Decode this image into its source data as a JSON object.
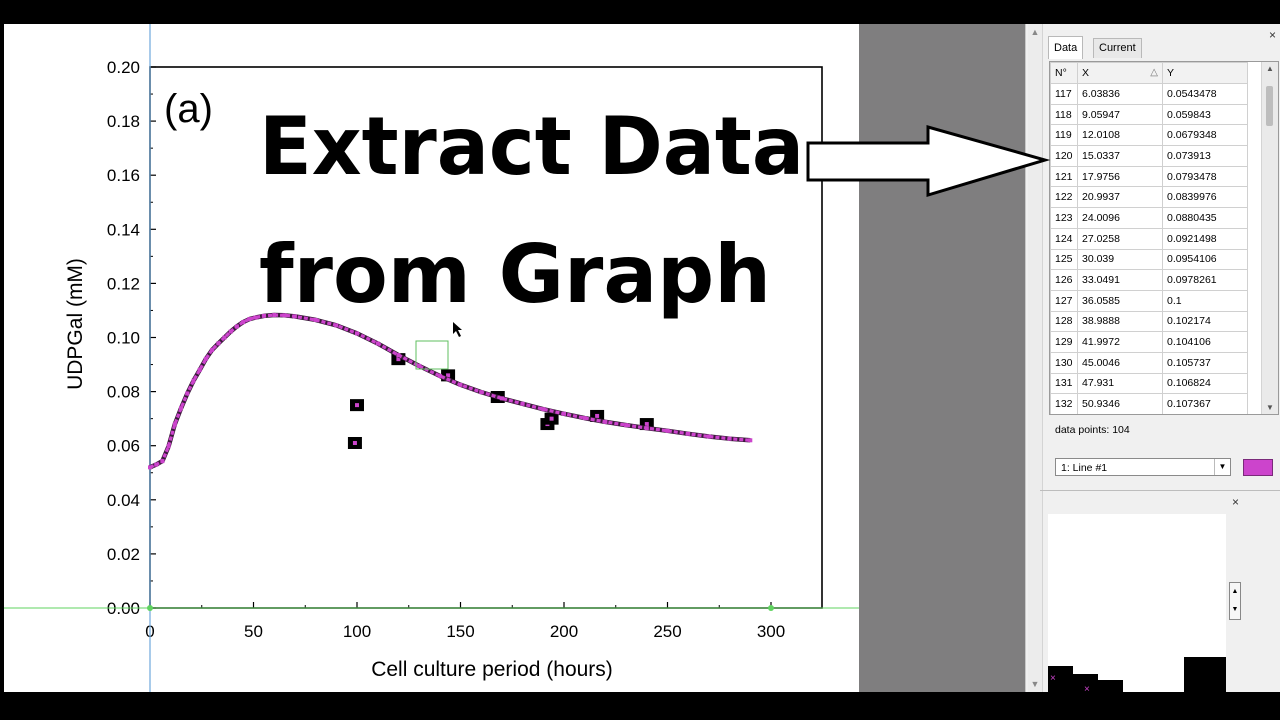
{
  "overlay": {
    "line1": "Extract Data",
    "line2": "from Graph"
  },
  "chart_data": {
    "type": "line",
    "panel_label": "(a)",
    "xlabel": "Cell culture period (hours)",
    "ylabel": "UDPGal (mM)",
    "xlim": [
      0,
      325
    ],
    "ylim": [
      0,
      0.2
    ],
    "x_ticks": [
      "0",
      "50",
      "100",
      "150",
      "200",
      "250",
      "300"
    ],
    "y_ticks": [
      "0.00",
      "0.02",
      "0.04",
      "0.06",
      "0.08",
      "0.10",
      "0.12",
      "0.14",
      "0.16",
      "0.18",
      "0.20"
    ],
    "series": [
      {
        "x": [
          0,
          3,
          6,
          9,
          12,
          15,
          18,
          21,
          24,
          27,
          30,
          33,
          36,
          39,
          42,
          45,
          48,
          51,
          55,
          60,
          65,
          70,
          80,
          90,
          100,
          110,
          120,
          130,
          140,
          150,
          160,
          170,
          180,
          190,
          200,
          210,
          220,
          230,
          240,
          250,
          260,
          270,
          280,
          290
        ],
        "y": [
          0.052,
          0.053,
          0.0543,
          0.0598,
          0.0679,
          0.0739,
          0.0793,
          0.084,
          0.088,
          0.0921,
          0.0954,
          0.0978,
          0.1,
          0.1022,
          0.1041,
          0.1057,
          0.1068,
          0.1074,
          0.108,
          0.1083,
          0.1082,
          0.1078,
          0.1065,
          0.1045,
          0.1015,
          0.0978,
          0.0935,
          0.0895,
          0.0858,
          0.0825,
          0.0798,
          0.0775,
          0.0755,
          0.0735,
          0.0718,
          0.0702,
          0.0688,
          0.0676,
          0.0665,
          0.0655,
          0.0644,
          0.0634,
          0.0626,
          0.062
        ]
      }
    ],
    "markers": {
      "x": [
        99,
        100,
        120,
        144,
        168,
        192,
        194,
        216,
        240
      ],
      "y": [
        0.061,
        0.075,
        0.092,
        0.086,
        0.078,
        0.068,
        0.07,
        0.071,
        0.068
      ]
    },
    "colors": {
      "line": "#cc44cc",
      "marker": "#000000",
      "crosshair": "#6fa8dc",
      "baseline": "#5fd35f"
    }
  },
  "panel": {
    "tabs": [
      "Data",
      "Current status"
    ],
    "table": {
      "headers": [
        "N°",
        "X",
        "Y"
      ],
      "rows": [
        [
          "117",
          "6.03836",
          "0.0543478"
        ],
        [
          "118",
          "9.05947",
          "0.059843"
        ],
        [
          "119",
          "12.0108",
          "0.0679348"
        ],
        [
          "120",
          "15.0337",
          "0.073913"
        ],
        [
          "121",
          "17.9756",
          "0.0793478"
        ],
        [
          "122",
          "20.9937",
          "0.0839976"
        ],
        [
          "123",
          "24.0096",
          "0.0880435"
        ],
        [
          "124",
          "27.0258",
          "0.0921498"
        ],
        [
          "125",
          "30.039",
          "0.0954106"
        ],
        [
          "126",
          "33.0491",
          "0.0978261"
        ],
        [
          "127",
          "36.0585",
          "0.1"
        ],
        [
          "128",
          "38.9888",
          "0.102174"
        ],
        [
          "129",
          "41.9972",
          "0.104106"
        ],
        [
          "130",
          "45.0046",
          "0.105737"
        ],
        [
          "131",
          "47.931",
          "0.106824"
        ],
        [
          "132",
          "50.9346",
          "0.107367"
        ]
      ]
    },
    "data_points": "data points: 104",
    "series_select": "1: Line #1",
    "swatch_color": "#cc44cc",
    "close": "×"
  }
}
